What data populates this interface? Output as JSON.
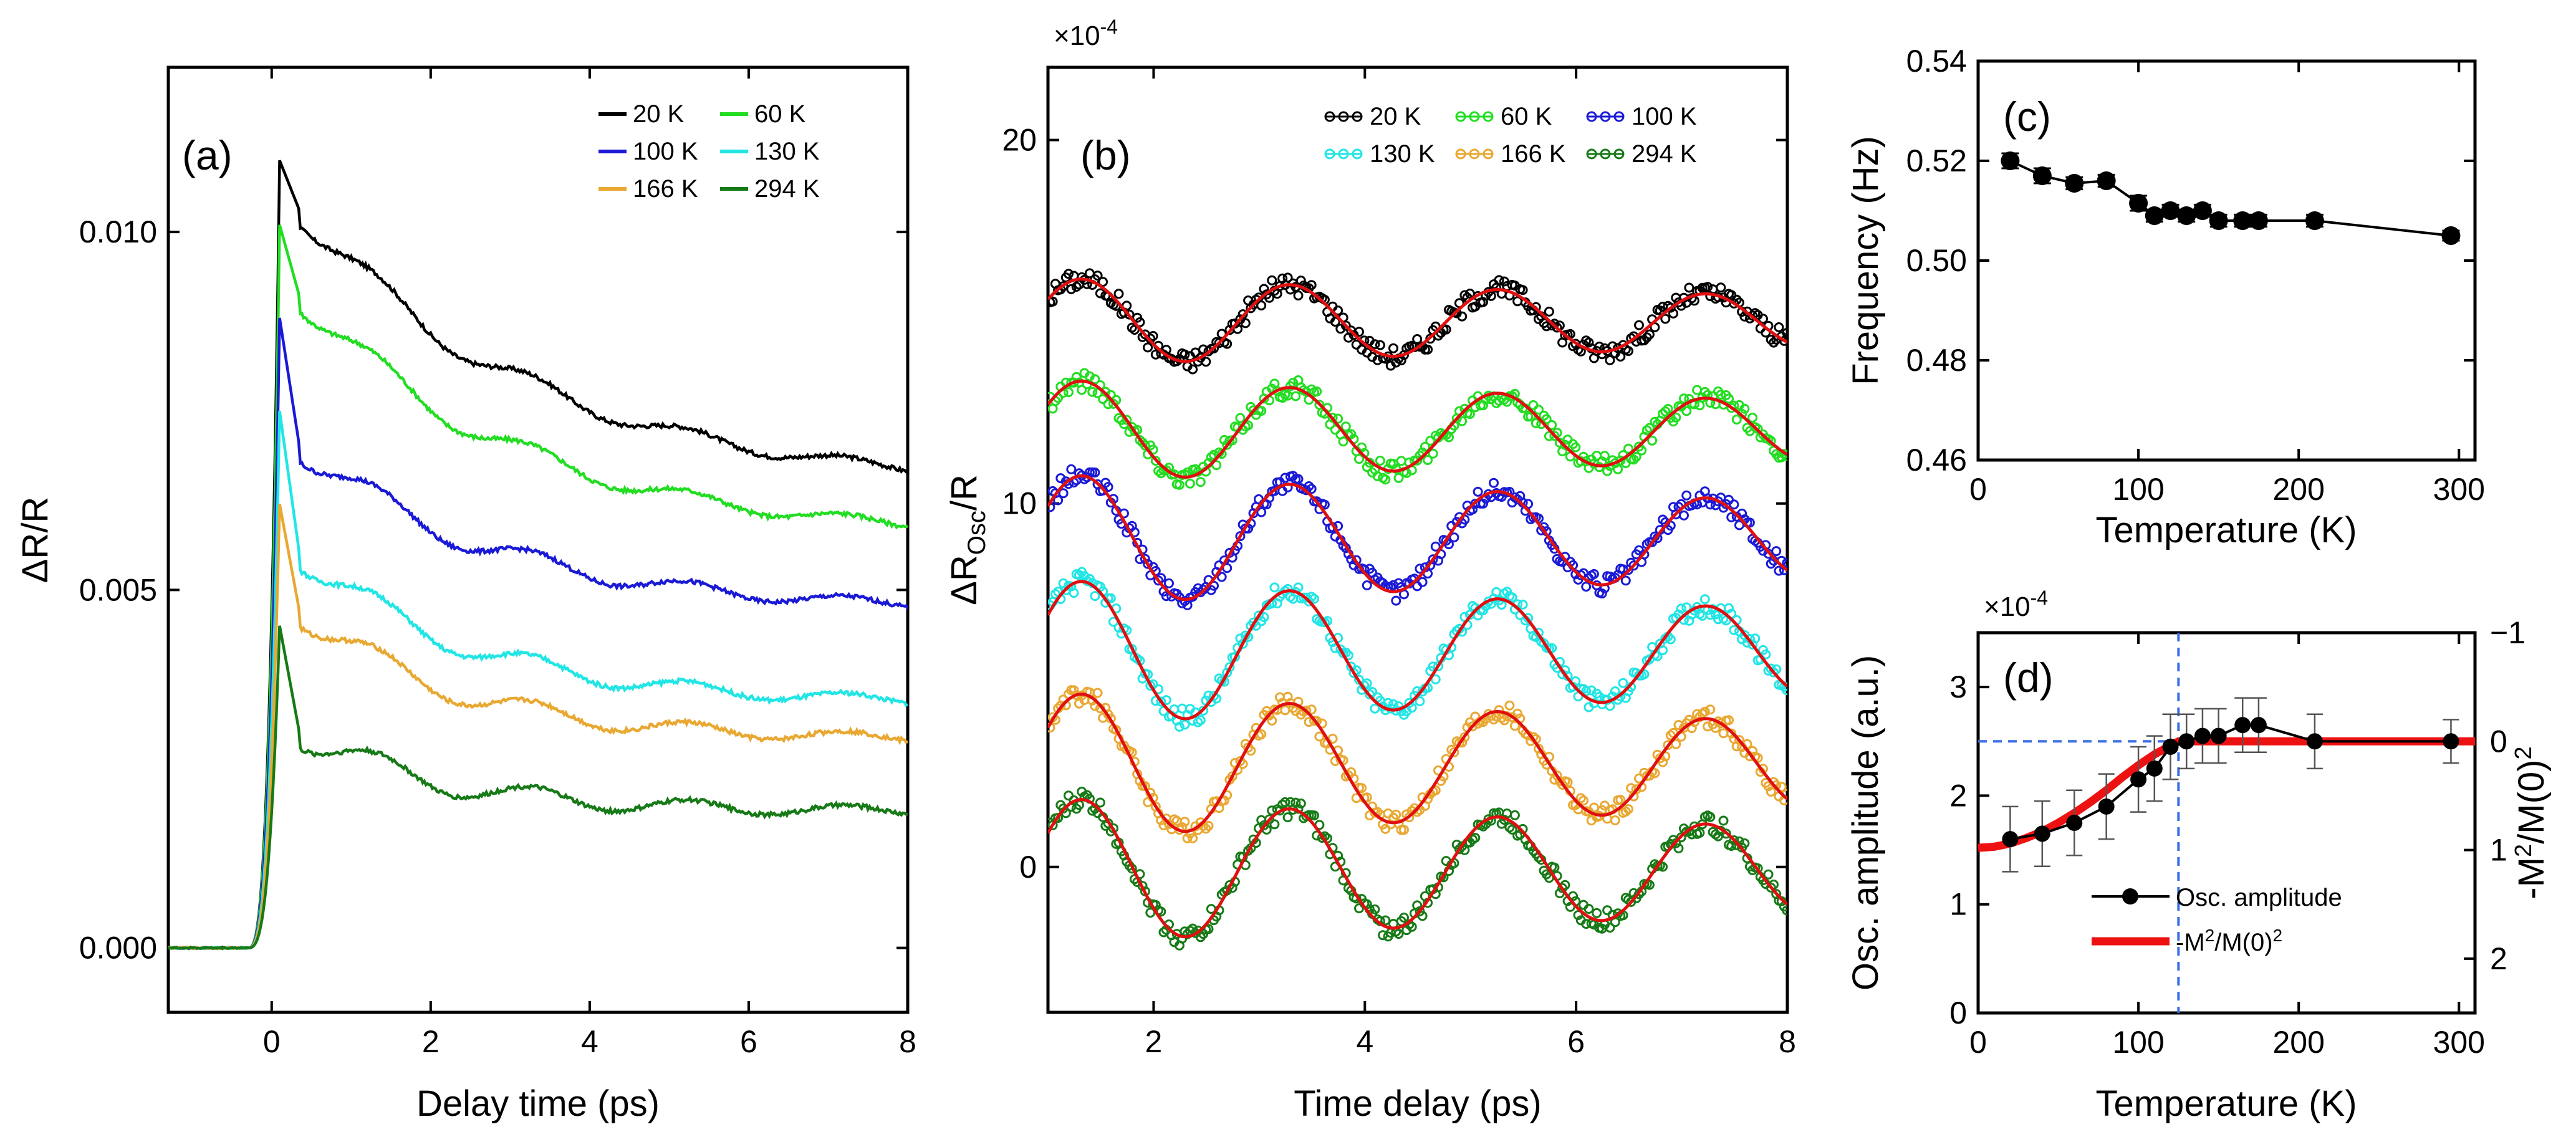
{
  "chart_data": [
    {
      "panel": "(a)",
      "type": "line",
      "xlabel": "Delay time (ps)",
      "ylabel": "ΔR/R",
      "xlim": [
        -1.3,
        8
      ],
      "ylim": [
        -0.0009,
        0.0123
      ],
      "xticks": [
        0,
        2,
        4,
        6,
        8
      ],
      "xtick_labels": [
        "0",
        "2",
        "4",
        "6",
        "8"
      ],
      "yticks": [
        0,
        0.005,
        0.01
      ],
      "ytick_labels": [
        "0.000",
        "0.005",
        "0.010"
      ],
      "legend_labels": [
        "20 K",
        "60 K",
        "100 K",
        "130 K",
        "166 K",
        "294 K"
      ],
      "series": [
        {
          "name": "20 K",
          "color": "#000000",
          "peak": 0.011,
          "plateau": 0.0103,
          "end": 0.0064,
          "tau": 3.0
        },
        {
          "name": "60 K",
          "color": "#22dd22",
          "peak": 0.0101,
          "plateau": 0.0091,
          "end": 0.0057,
          "tau": 2.8
        },
        {
          "name": "100 K",
          "color": "#1a1ad6",
          "peak": 0.0088,
          "plateau": 0.007,
          "end": 0.0047,
          "tau": 2.5
        },
        {
          "name": "130 K",
          "color": "#22e5e5",
          "peak": 0.0075,
          "plateau": 0.0055,
          "end": 0.0034,
          "tau": 2.2
        },
        {
          "name": "166 K",
          "color": "#e8a832",
          "peak": 0.0062,
          "plateau": 0.0047,
          "end": 0.0029,
          "tau": 2.0
        },
        {
          "name": "294 K",
          "color": "#167a16",
          "peak": 0.0045,
          "plateau": 0.003,
          "end": 0.0019,
          "tau": 1.8
        }
      ]
    },
    {
      "panel": "(b)",
      "type": "scatter",
      "xlabel": "Time delay (ps)",
      "ylabel_main": "ΔR",
      "ylabel_sub": "Osc",
      "ylabel_tail": "/R",
      "multiplier": "×10",
      "multiplier_exp": "-4",
      "xlim": [
        1,
        8
      ],
      "ylim": [
        -4,
        22
      ],
      "xticks": [
        2,
        4,
        6,
        8
      ],
      "xtick_labels": [
        "2",
        "4",
        "6",
        "8"
      ],
      "yticks": [
        0,
        10,
        20
      ],
      "ytick_labels": [
        "0",
        "10",
        "20"
      ],
      "legend_labels": [
        "20 K",
        "60 K",
        "100 K",
        "130 K",
        "166 K",
        "294 K"
      ],
      "fit_color": "#e01010",
      "series": [
        {
          "name": "20 K",
          "color": "#000000",
          "offset": 15,
          "amp": 1.2
        },
        {
          "name": "60 K",
          "color": "#22dd22",
          "offset": 12,
          "amp": 1.4
        },
        {
          "name": "100 K",
          "color": "#1a1ad6",
          "offset": 9,
          "amp": 1.8
        },
        {
          "name": "130 K",
          "color": "#22e5e5",
          "offset": 5.9,
          "amp": 2.0
        },
        {
          "name": "166 K",
          "color": "#e8a832",
          "offset": 2.8,
          "amp": 2.0
        },
        {
          "name": "294 K",
          "color": "#167a16",
          "offset": -0.1,
          "amp": 2.0
        }
      ]
    },
    {
      "panel": "(c)",
      "type": "line",
      "xlabel": "Temperature (K)",
      "ylabel": "Frequency (Hz)",
      "xlim": [
        0,
        310
      ],
      "ylim": [
        0.46,
        0.54
      ],
      "xticks": [
        0,
        100,
        200,
        300
      ],
      "xtick_labels": [
        "0",
        "100",
        "200",
        "300"
      ],
      "yticks": [
        0.46,
        0.48,
        0.5,
        0.52,
        0.54
      ],
      "ytick_labels": [
        "0.46",
        "0.48",
        "0.50",
        "0.52",
        "0.54"
      ],
      "x": [
        20,
        40,
        60,
        80,
        100,
        110,
        120,
        130,
        140,
        150,
        165,
        175,
        210,
        295
      ],
      "y": [
        0.52,
        0.517,
        0.5155,
        0.516,
        0.5115,
        0.509,
        0.51,
        0.509,
        0.51,
        0.508,
        0.508,
        0.508,
        0.508,
        0.505
      ],
      "yerr": [
        0.0015,
        0.0015,
        0.0012,
        0.0012,
        0.0015,
        0.0012,
        0.0012,
        0.0012,
        0.0012,
        0.0012,
        0.0012,
        0.0012,
        0.0012,
        0.001
      ],
      "color": "#000000"
    },
    {
      "panel": "(d)",
      "type": "line",
      "xlabel": "Temperature (K)",
      "ylabel_left": "Osc. amplitude (a.u.)",
      "ylabel_right_pre": "-M",
      "ylabel_right_mid": "/M(0)",
      "ylabel_right_sup": "2",
      "multiplier": "×10",
      "multiplier_exp": "-4",
      "xlim": [
        0,
        310
      ],
      "ylim": [
        0,
        3.5
      ],
      "xticks": [
        0,
        100,
        200,
        300
      ],
      "xtick_labels": [
        "0",
        "100",
        "200",
        "300"
      ],
      "yticks": [
        0,
        1,
        2,
        3
      ],
      "ytick_labels": [
        "0",
        "1",
        "2",
        "3"
      ],
      "right_ylim": [
        -1,
        2.5
      ],
      "right_yticks": [
        -1,
        0,
        1,
        2
      ],
      "right_ytick_labels": [
        "−1",
        "0",
        "1",
        "2"
      ],
      "x": [
        20,
        40,
        60,
        80,
        100,
        110,
        120,
        130,
        140,
        150,
        165,
        175,
        210,
        295
      ],
      "y": [
        1.6,
        1.65,
        1.75,
        1.9,
        2.15,
        2.25,
        2.45,
        2.5,
        2.55,
        2.55,
        2.65,
        2.65,
        2.5,
        2.5
      ],
      "yerr": [
        0.3,
        0.3,
        0.3,
        0.3,
        0.3,
        0.3,
        0.3,
        0.25,
        0.25,
        0.25,
        0.25,
        0.25,
        0.25,
        0.2
      ],
      "fit_x": [
        0,
        10,
        20,
        30,
        40,
        50,
        60,
        70,
        80,
        90,
        100,
        110,
        120,
        125,
        310
      ],
      "fit_y": [
        1.52,
        1.53,
        1.56,
        1.61,
        1.67,
        1.75,
        1.84,
        1.94,
        2.05,
        2.17,
        2.28,
        2.38,
        2.46,
        2.5,
        2.5
      ],
      "tc_x": 125,
      "tc_y": 2.5,
      "legend": {
        "amp_label": "Osc. amplitude",
        "fit_label_pre": "-M",
        "fit_label_mid": "/M(0)",
        "fit_label_sup": "2"
      },
      "color": "#000000",
      "fit_color": "#ee1111",
      "guide_color": "#3a6ee8"
    }
  ]
}
